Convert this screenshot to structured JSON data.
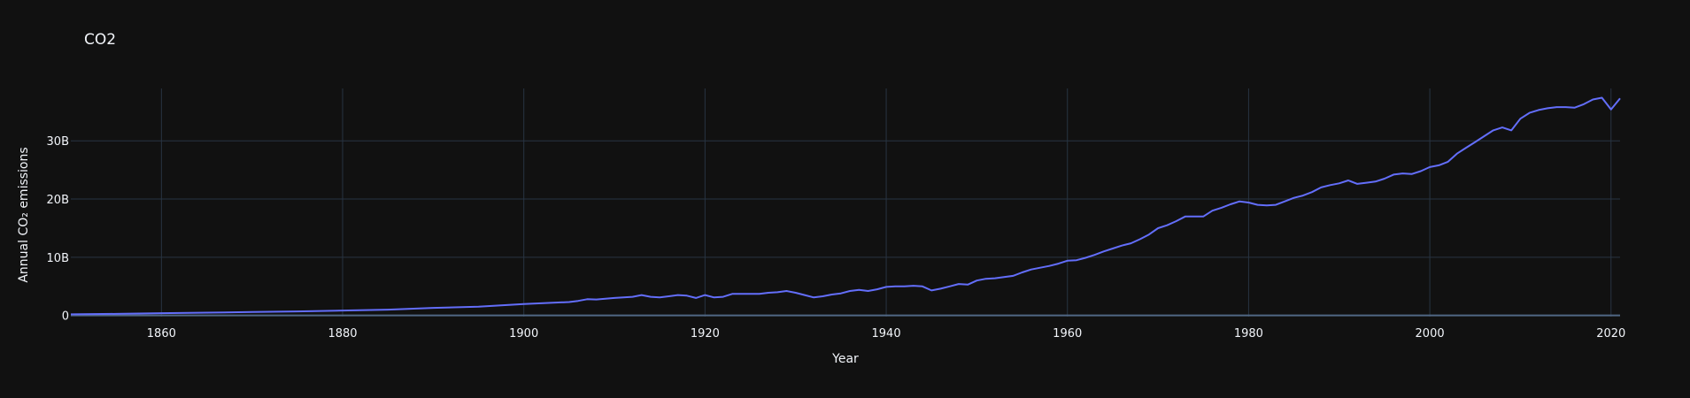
{
  "chart_data": {
    "type": "line",
    "title": "CO2",
    "xlabel": "Year",
    "ylabel": "Annual CO₂ emissions",
    "xlim": [
      1850,
      2021
    ],
    "ylim": [
      -200000000.0,
      39000000000.0
    ],
    "x_ticks": [
      1860,
      1880,
      1900,
      1920,
      1940,
      1960,
      1980,
      2000,
      2020
    ],
    "x_tick_labels": [
      "1860",
      "1880",
      "1900",
      "1920",
      "1940",
      "1960",
      "1980",
      "2000",
      "2020"
    ],
    "y_ticks": [
      0,
      10000000000,
      20000000000,
      30000000000
    ],
    "y_tick_labels": [
      "0",
      "10B",
      "20B",
      "30B"
    ],
    "grid": true,
    "line_color": "#636efa",
    "series": [
      {
        "name": "",
        "x": [
          1850,
          1855,
          1860,
          1865,
          1870,
          1875,
          1880,
          1885,
          1890,
          1895,
          1900,
          1905,
          1906,
          1907,
          1908,
          1910,
          1912,
          1913,
          1914,
          1915,
          1916,
          1917,
          1918,
          1919,
          1920,
          1921,
          1922,
          1923,
          1924,
          1925,
          1926,
          1927,
          1928,
          1929,
          1930,
          1931,
          1932,
          1933,
          1934,
          1935,
          1936,
          1937,
          1938,
          1939,
          1940,
          1941,
          1942,
          1943,
          1944,
          1945,
          1946,
          1947,
          1948,
          1949,
          1950,
          1951,
          1952,
          1953,
          1954,
          1955,
          1956,
          1957,
          1958,
          1959,
          1960,
          1961,
          1962,
          1963,
          1964,
          1965,
          1966,
          1967,
          1968,
          1969,
          1970,
          1971,
          1972,
          1973,
          1974,
          1975,
          1976,
          1977,
          1978,
          1979,
          1980,
          1981,
          1982,
          1983,
          1984,
          1985,
          1986,
          1987,
          1988,
          1989,
          1990,
          1991,
          1992,
          1993,
          1994,
          1995,
          1996,
          1997,
          1998,
          1999,
          2000,
          2001,
          2002,
          2003,
          2004,
          2005,
          2006,
          2007,
          2008,
          2009,
          2010,
          2011,
          2012,
          2013,
          2014,
          2015,
          2016,
          2017,
          2018,
          2019,
          2020,
          2021
        ],
        "y": [
          200000000.0,
          270000000.0,
          390000000.0,
          480000000.0,
          590000000.0,
          700000000.0,
          850000000.0,
          1000000000.0,
          1300000000.0,
          1500000000.0,
          1950000000.0,
          2300000000.0,
          2500000000.0,
          2800000000.0,
          2750000000.0,
          3000000000.0,
          3200000000.0,
          3500000000.0,
          3200000000.0,
          3100000000.0,
          3300000000.0,
          3500000000.0,
          3400000000.0,
          3000000000.0,
          3500000000.0,
          3100000000.0,
          3200000000.0,
          3700000000.0,
          3700000000.0,
          3700000000.0,
          3700000000.0,
          3900000000.0,
          4000000000.0,
          4200000000.0,
          3900000000.0,
          3500000000.0,
          3100000000.0,
          3300000000.0,
          3600000000.0,
          3800000000.0,
          4200000000.0,
          4400000000.0,
          4200000000.0,
          4500000000.0,
          4900000000.0,
          5000000000.0,
          5000000000.0,
          5100000000.0,
          5000000000.0,
          4300000000.0,
          4600000000.0,
          5000000000.0,
          5400000000.0,
          5300000000.0,
          6000000000.0,
          6300000000.0,
          6400000000.0,
          6600000000.0,
          6800000000.0,
          7400000000.0,
          7900000000.0,
          8200000000.0,
          8500000000.0,
          8900000000.0,
          9400000000.0,
          9500000000.0,
          9900000000.0,
          10400000000.0,
          11000000000.0,
          11500000000.0,
          12000000000.0,
          12400000000.0,
          13100000000.0,
          13900000000.0,
          15000000000.0,
          15500000000.0,
          16200000000.0,
          17000000000.0,
          17000000000.0,
          17000000000.0,
          18000000000.0,
          18500000000.0,
          19100000000.0,
          19600000000.0,
          19400000000.0,
          19000000000.0,
          18900000000.0,
          19000000000.0,
          19600000000.0,
          20200000000.0,
          20600000000.0,
          21200000000.0,
          22000000000.0,
          22400000000.0,
          22700000000.0,
          23200000000.0,
          22600000000.0,
          22800000000.0,
          23000000000.0,
          23500000000.0,
          24200000000.0,
          24400000000.0,
          24300000000.0,
          24800000000.0,
          25500000000.0,
          25800000000.0,
          26400000000.0,
          27800000000.0,
          28800000000.0,
          29800000000.0,
          30800000000.0,
          31800000000.0,
          32300000000.0,
          31800000000.0,
          33800000000.0,
          34800000000.0,
          35300000000.0,
          35600000000.0,
          35800000000.0,
          35800000000.0,
          35700000000.0,
          36300000000.0,
          37100000000.0,
          37400000000.0,
          35400000000.0,
          37300000000.0
        ]
      }
    ]
  }
}
